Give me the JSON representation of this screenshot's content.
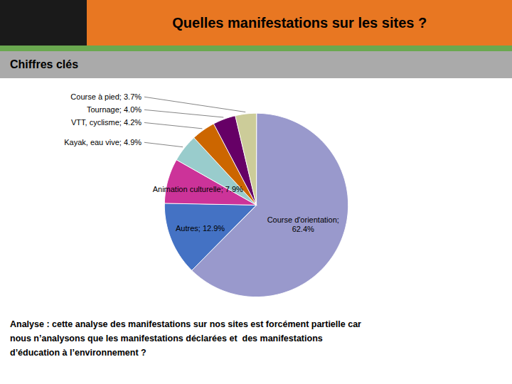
{
  "chart_data": {
    "type": "pie",
    "title": "Quelles manifestations sur les sites ?",
    "subtitle": "Chiffres clés",
    "categories": [
      "Course d'orientation",
      "Autres",
      "Animation culturelle",
      "Kayak, eau vive",
      "VTT, cyclisme",
      "Tournage",
      "Course à pied"
    ],
    "values": [
      62.4,
      12.9,
      7.9,
      4.9,
      4.2,
      4.0,
      3.7
    ],
    "value_labels": [
      "Course d'orientation;\n62.4%",
      "Autres; 12.9%",
      "Animation culturelle; 7.9%",
      "Kayak, eau vive; 4.9%",
      "VTT, cyclisme; 4.2%",
      "Tournage; 4.0%",
      "Course à pied; 3.7%"
    ],
    "colors": [
      "#9999CC",
      "#4472C4",
      "#CC3399",
      "#99CCCC",
      "#CC6600",
      "#660066",
      "#CCCC99"
    ],
    "data_labels": true,
    "tick_labels": false,
    "annotations": [
      "Analyse : cette analyse des manifestations sur nos sites est forcément partielle car\nnous n’analysons que les manifestations déclarées et  des manifestations\nd’éducation à l’environnement ?"
    ]
  }
}
